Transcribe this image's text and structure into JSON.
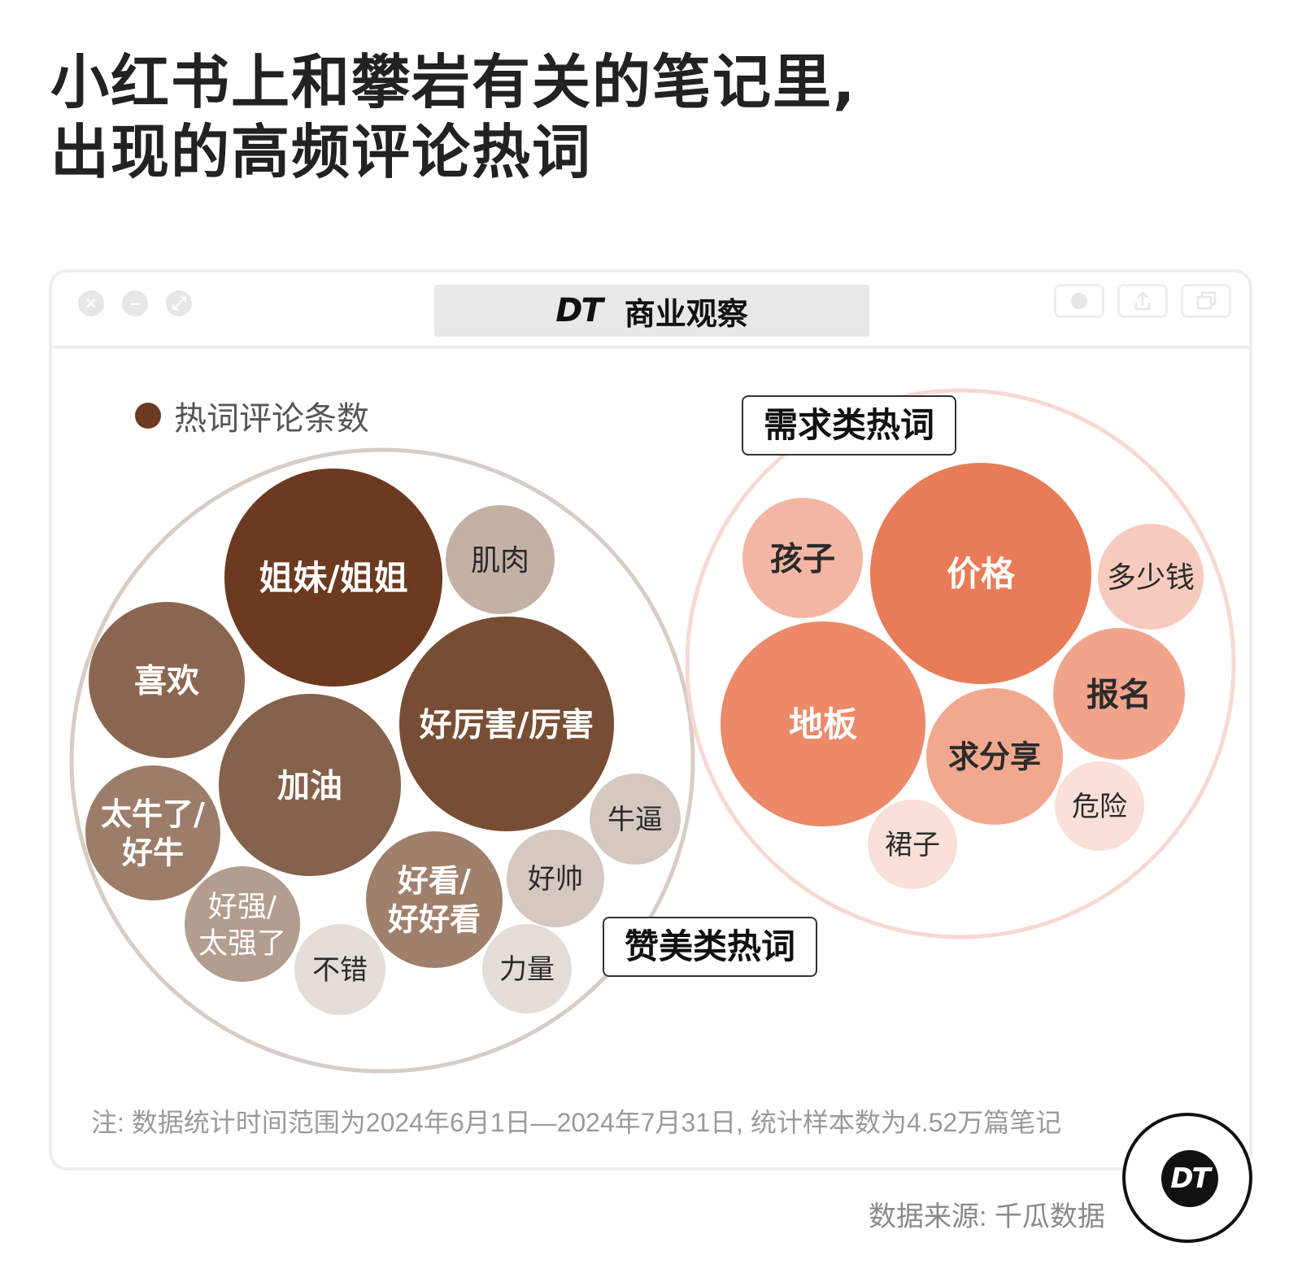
{
  "title_line1": "小红书上和攀岩有关的笔记里,",
  "title_line2": "出现的高频评论热词",
  "brand": {
    "logo": "DT",
    "name": "商业观察"
  },
  "legend_label": "热词评论条数",
  "groups": {
    "praise": "赞美类热词",
    "demand": "需求类热词"
  },
  "note": "注: 数据统计时间范围为2024年6月1日—2024年7月31日, 统计样本数为4.52万篇笔记",
  "source": "数据来源: 千瓜数据",
  "corner_logo": "DT",
  "colors": {
    "praise_group_outline": "#d7ccc6",
    "demand_group_outline": "#f6d9d1",
    "legend_dot": "#6b3a20"
  },
  "chart_data": {
    "type": "bubble",
    "value_label": "热词评论条数",
    "groups": [
      {
        "name": "赞美类热词",
        "words": [
          {
            "word": "姐妹/姐姐",
            "rank": 1,
            "color": "#6b3a20"
          },
          {
            "word": "好厉害/厉害",
            "rank": 2,
            "color": "#774e34"
          },
          {
            "word": "加油",
            "rank": 3,
            "color": "#84624b"
          },
          {
            "word": "喜欢",
            "rank": 4,
            "color": "#8a6650"
          },
          {
            "word": "太牛了/好牛",
            "rank": 5,
            "color": "#9c7d69"
          },
          {
            "word": "好看/好好看",
            "rank": 6,
            "color": "#9f806c"
          },
          {
            "word": "好强/太强了",
            "rank": 7,
            "color": "#b39d8f"
          },
          {
            "word": "肌肉",
            "rank": 8,
            "color": "#c3b1a6"
          },
          {
            "word": "牛逼",
            "rank": 9,
            "color": "#d5c8c0"
          },
          {
            "word": "好帅",
            "rank": 10,
            "color": "#d5c8c0"
          },
          {
            "word": "不错",
            "rank": 11,
            "color": "#e4dcd7"
          },
          {
            "word": "力量",
            "rank": 12,
            "color": "#e4dcd7"
          }
        ]
      },
      {
        "name": "需求类热词",
        "words": [
          {
            "word": "价格",
            "rank": 1,
            "color": "#e97c58"
          },
          {
            "word": "地板",
            "rank": 2,
            "color": "#eb8968"
          },
          {
            "word": "报名",
            "rank": 3,
            "color": "#f2a48b"
          },
          {
            "word": "求分享",
            "rank": 4,
            "color": "#f2a88f"
          },
          {
            "word": "孩子",
            "rank": 5,
            "color": "#f3b6a3"
          },
          {
            "word": "多少钱",
            "rank": 6,
            "color": "#f6cbbd"
          },
          {
            "word": "危险",
            "rank": 7,
            "color": "#f9e0d8"
          },
          {
            "word": "裙子",
            "rank": 8,
            "color": "#f9e0d8"
          }
        ]
      }
    ]
  }
}
